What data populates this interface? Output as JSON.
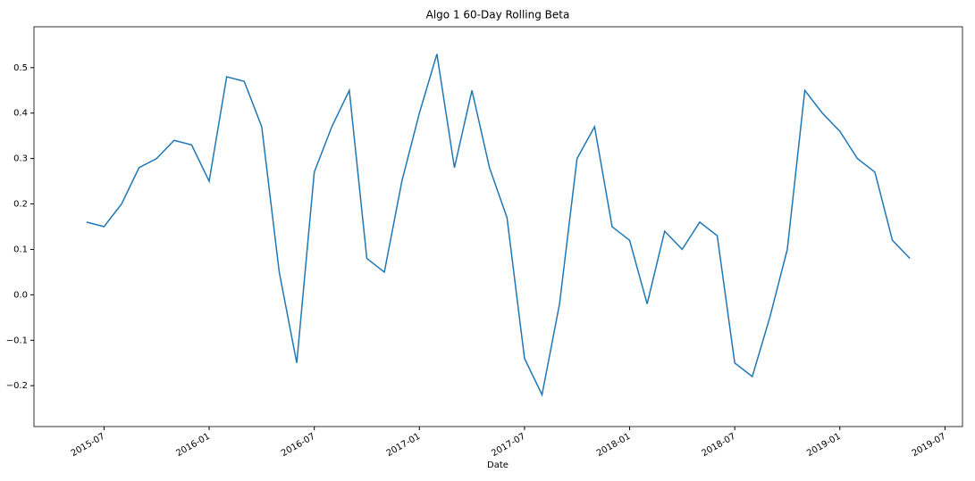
{
  "chart_data": {
    "type": "line",
    "title": "Algo 1 60-Day Rolling Beta",
    "x_label": "Date",
    "x": [
      "2015-06",
      "2015-07",
      "2015-08",
      "2015-09",
      "2015-10",
      "2015-11",
      "2015-12",
      "2016-01",
      "2016-02",
      "2016-03",
      "2016-04",
      "2016-05",
      "2016-06",
      "2016-07",
      "2016-08",
      "2016-09",
      "2016-10",
      "2016-11",
      "2016-12",
      "2017-01",
      "2017-02",
      "2017-03",
      "2017-04",
      "2017-05",
      "2017-06",
      "2017-07",
      "2017-08",
      "2017-09",
      "2017-10",
      "2017-11",
      "2017-12",
      "2018-01",
      "2018-02",
      "2018-03",
      "2018-04",
      "2018-05",
      "2018-06",
      "2018-07",
      "2018-08",
      "2018-09",
      "2018-10",
      "2018-11",
      "2018-12",
      "2019-01",
      "2019-02",
      "2019-03",
      "2019-04",
      "2019-05"
    ],
    "series": [
      {
        "color": "#1f77b4",
        "values": [
          0.16,
          0.15,
          0.2,
          0.28,
          0.3,
          0.34,
          0.33,
          0.25,
          0.48,
          0.47,
          0.37,
          0.05,
          -0.15,
          0.27,
          0.37,
          0.45,
          0.08,
          0.05,
          0.25,
          0.4,
          0.53,
          0.28,
          0.45,
          0.28,
          0.17,
          -0.14,
          -0.22,
          -0.02,
          0.3,
          0.37,
          0.15,
          0.12,
          -0.02,
          0.14,
          0.1,
          0.16,
          0.13,
          -0.15,
          -0.18,
          -0.05,
          0.1,
          0.45,
          0.4,
          0.36,
          0.3,
          0.27,
          0.12,
          0.08
        ]
      }
    ],
    "xlim": [
      "2015-03",
      "2019-08"
    ],
    "xticks": [
      "2015-07",
      "2016-01",
      "2016-07",
      "2017-01",
      "2017-07",
      "2018-01",
      "2018-07",
      "2019-01",
      "2019-07"
    ],
    "ylim": [
      -0.29,
      0.59
    ],
    "yticks": [
      {
        "value": -0.2,
        "label": "−0.2"
      },
      {
        "value": -0.1,
        "label": "−0.1"
      },
      {
        "value": 0,
        "label": "0.0"
      },
      0.1,
      0.2,
      0.3,
      0.4,
      0.5
    ]
  }
}
